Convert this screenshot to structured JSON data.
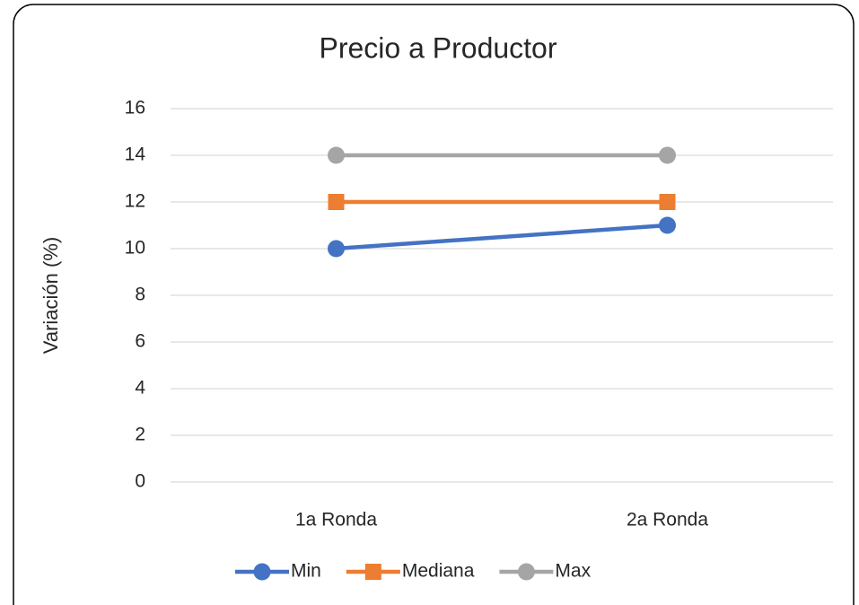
{
  "chart_data": {
    "type": "line",
    "title": "Precio a Productor",
    "ylabel": "Variación (%)",
    "categories": [
      "1a Ronda",
      "2a Ronda"
    ],
    "series": [
      {
        "name": "Min",
        "color": "#4472c4",
        "marker": "circle",
        "values": [
          10,
          11
        ]
      },
      {
        "name": "Mediana",
        "color": "#ed7d31",
        "marker": "square",
        "values": [
          12,
          12
        ]
      },
      {
        "name": "Max",
        "color": "#a5a5a5",
        "marker": "circle",
        "values": [
          14,
          14
        ]
      }
    ],
    "ylim": [
      0,
      16
    ],
    "yticks": [
      0,
      2,
      4,
      6,
      8,
      10,
      12,
      14,
      16
    ],
    "grid": true,
    "legend": "bottom"
  }
}
